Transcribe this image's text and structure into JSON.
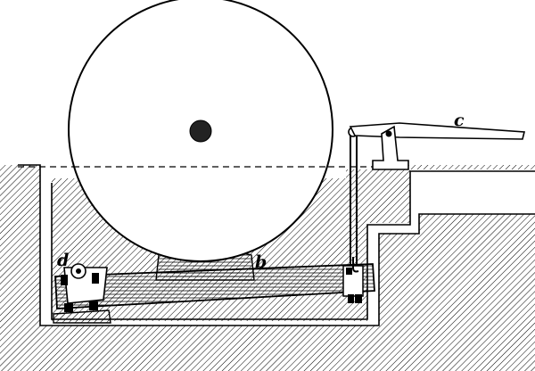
{
  "diagram": {
    "labels": {
      "b": "b",
      "c": "c",
      "d": "d"
    },
    "colors": {
      "ink": "#000000",
      "paper": "#ffffff"
    }
  }
}
